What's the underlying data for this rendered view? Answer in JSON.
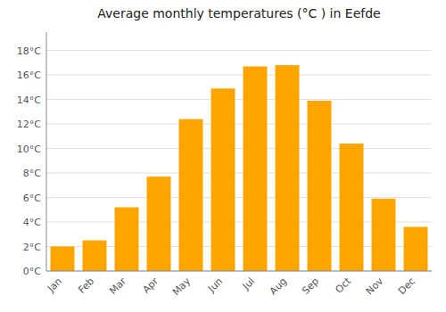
{
  "chart_data": {
    "type": "bar",
    "title": "Average monthly temperatures (°C ) in Eefde",
    "categories": [
      "Jan",
      "Feb",
      "Mar",
      "Apr",
      "May",
      "Jun",
      "Jul",
      "Aug",
      "Sep",
      "Oct",
      "Nov",
      "Dec"
    ],
    "values": [
      2.0,
      2.5,
      5.2,
      7.7,
      12.4,
      14.9,
      16.7,
      16.8,
      13.9,
      10.4,
      5.9,
      3.6
    ],
    "color": "#FFA500",
    "ylim": [
      0,
      19.5
    ],
    "yticks": [
      {
        "value": 0,
        "label": "0°C"
      },
      {
        "value": 2,
        "label": "2°C"
      },
      {
        "value": 4,
        "label": "4°C"
      },
      {
        "value": 6,
        "label": "6°C"
      },
      {
        "value": 8,
        "label": "8°C"
      },
      {
        "value": 10,
        "label": "10°C"
      },
      {
        "value": 12,
        "label": "12°C"
      },
      {
        "value": 14,
        "label": "14°C"
      },
      {
        "value": 16,
        "label": "16°C"
      },
      {
        "value": 18,
        "label": "18°C"
      }
    ],
    "grid": true
  }
}
